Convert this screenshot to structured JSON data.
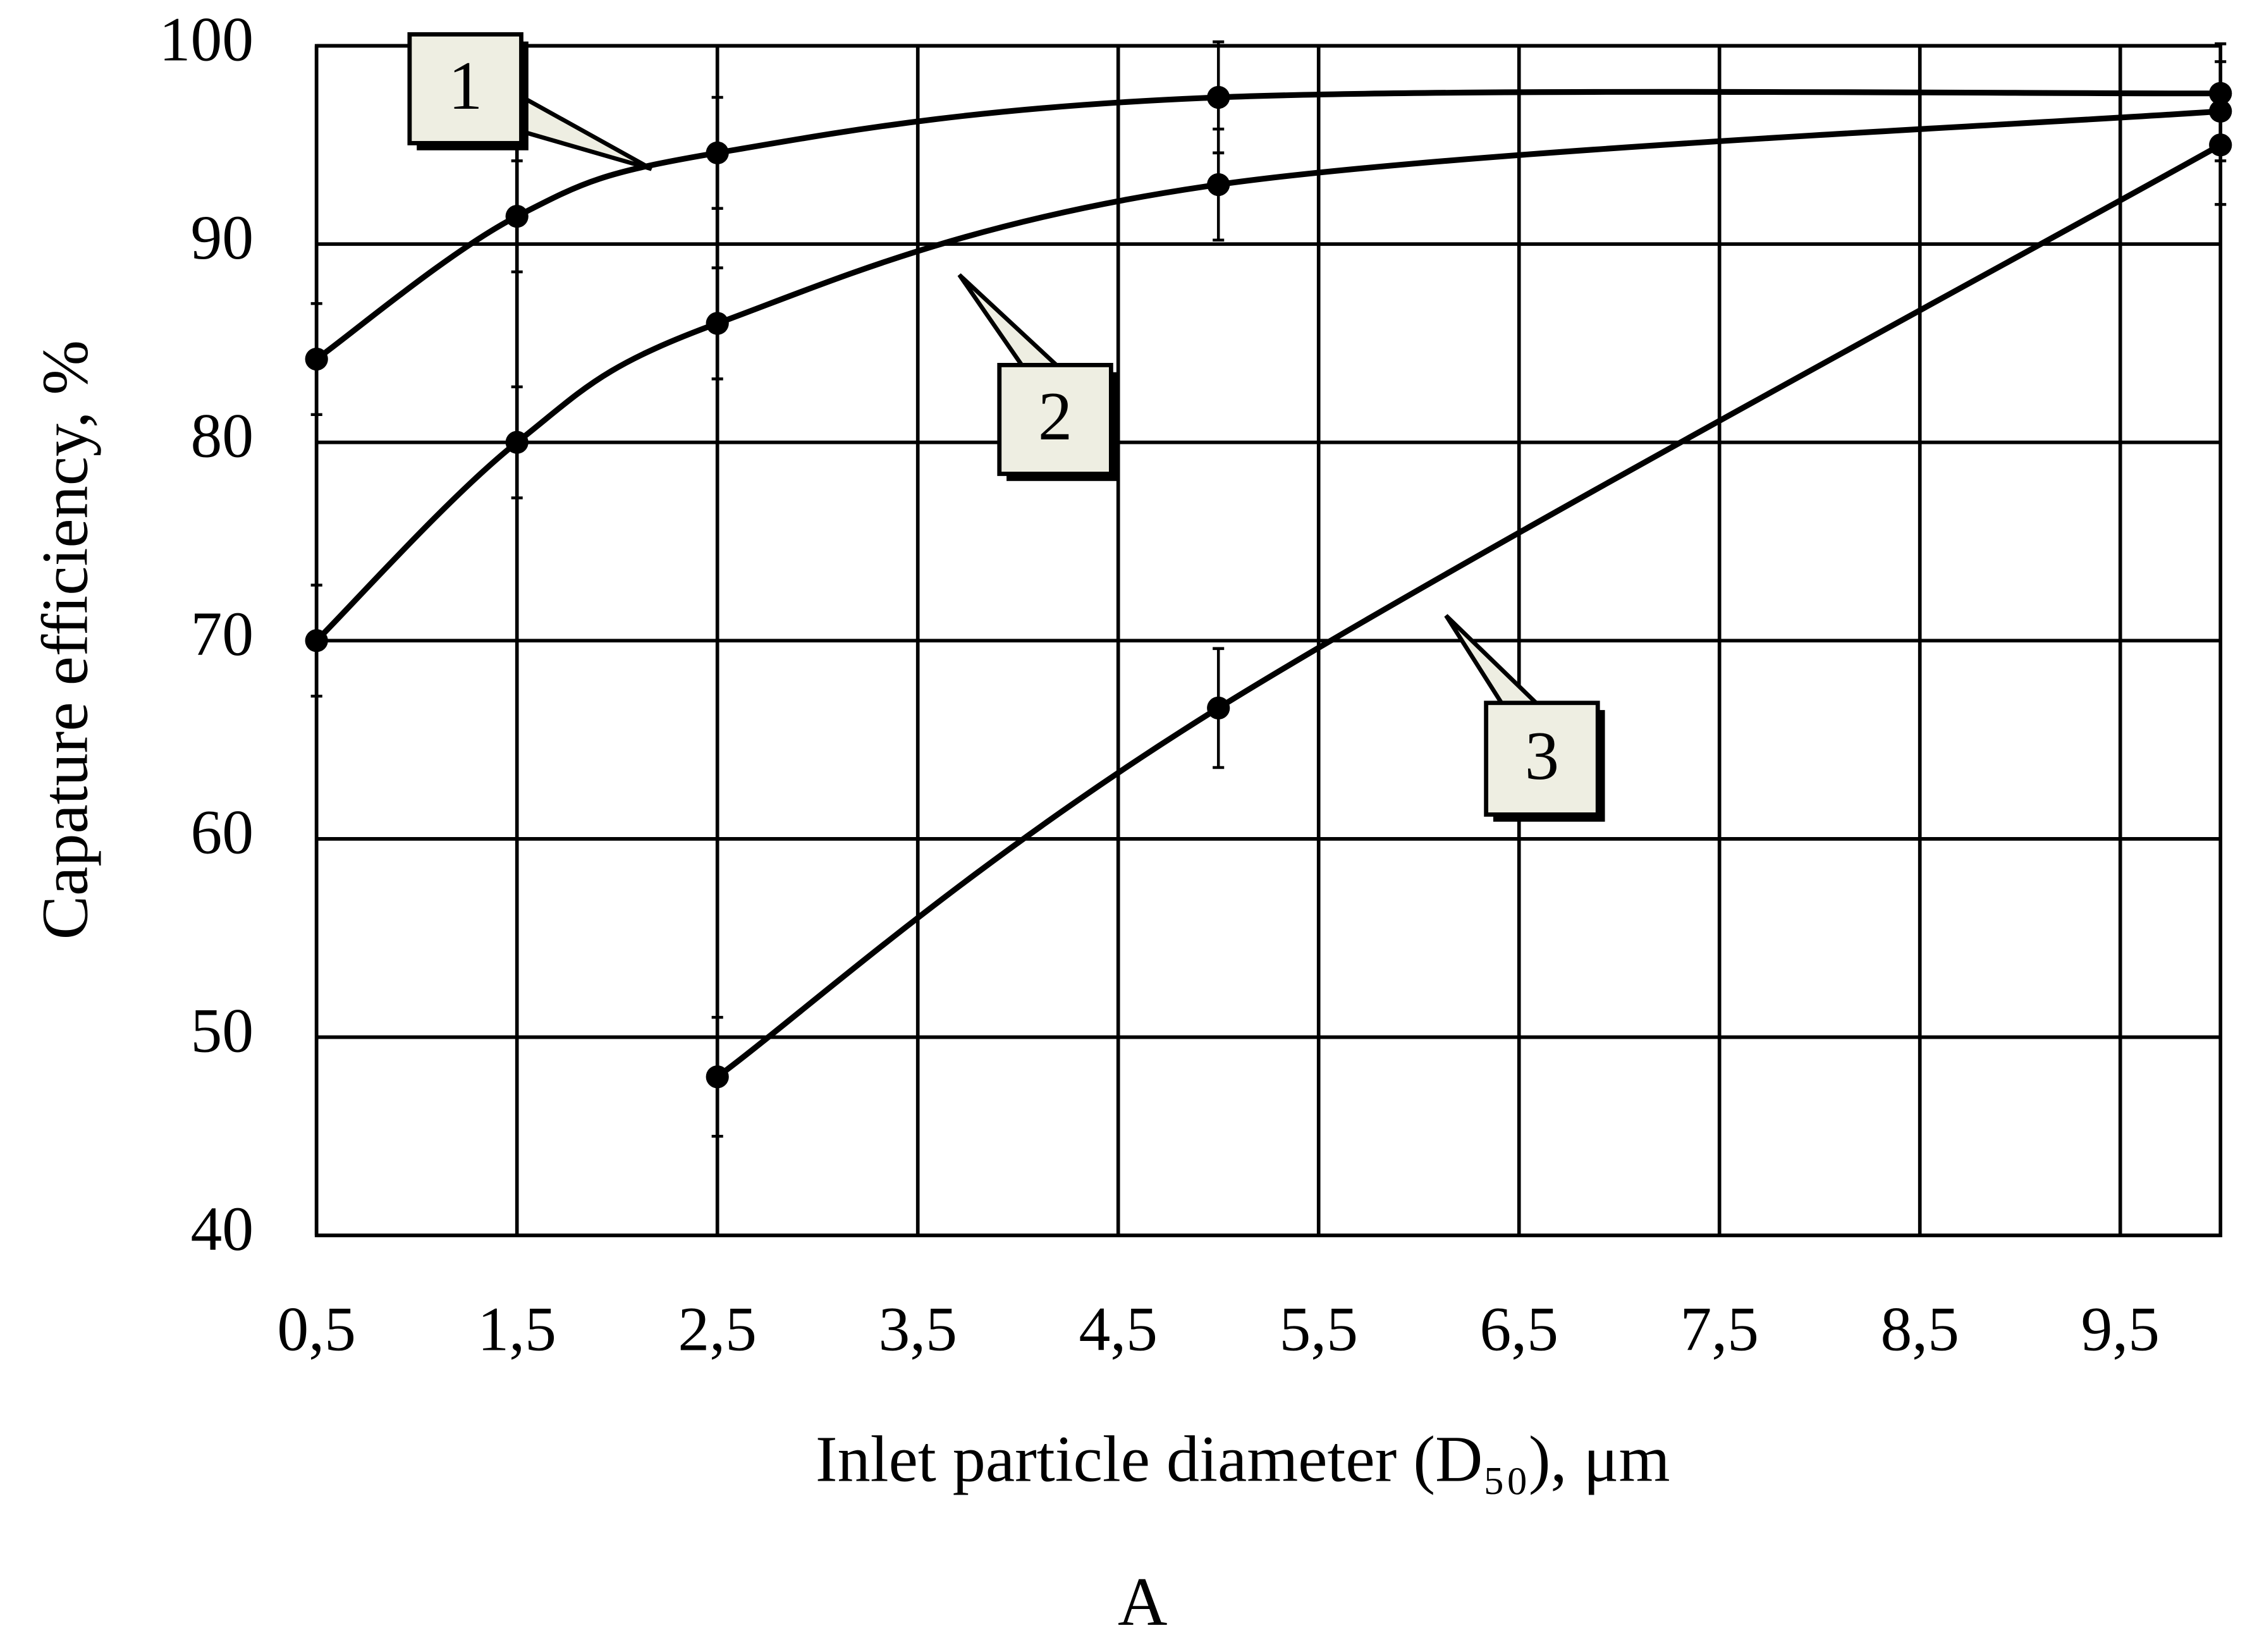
{
  "chart_data": {
    "type": "line",
    "y_label": "Capature efficiency,  %",
    "x_label": "Inlet particle diameter (D₅₀), μm",
    "caption": "A",
    "xlim": [
      0.5,
      10
    ],
    "xticks": [
      {
        "value": 0.5,
        "label": "0,5"
      },
      {
        "value": 1.5,
        "label": "1,5"
      },
      {
        "value": 2.5,
        "label": "2,5"
      },
      {
        "value": 3.5,
        "label": "3,5"
      },
      {
        "value": 4.5,
        "label": "4,5"
      },
      {
        "value": 5.5,
        "label": "5,5"
      },
      {
        "value": 6.5,
        "label": "6,5"
      },
      {
        "value": 7.5,
        "label": "7,5"
      },
      {
        "value": 8.5,
        "label": "8,5"
      },
      {
        "value": 9.5,
        "label": "9,5"
      }
    ],
    "ylim": [
      40,
      100
    ],
    "yticks": [
      40,
      50,
      60,
      70,
      80,
      90,
      100
    ],
    "grid": true,
    "series": [
      {
        "color": "#000000",
        "x": [
          0.5,
          1.5,
          2.5,
          5,
          10
        ],
        "values": [
          84.2,
          91.4,
          94.6,
          97.4,
          97.6
        ],
        "errors": [
          2.8,
          2.8,
          2.8,
          2.8,
          2.5
        ]
      },
      {
        "color": "#000000",
        "x": [
          0.5,
          1.5,
          2.5,
          5,
          10
        ],
        "values": [
          70,
          80,
          86,
          93,
          96.7
        ],
        "errors": [
          2.8,
          2.8,
          2.8,
          2.8,
          2.5
        ]
      },
      {
        "color": "#000000",
        "x": [
          2.5,
          5,
          10
        ],
        "values": [
          48,
          66.6,
          95
        ],
        "errors": [
          3,
          3,
          3
        ]
      }
    ],
    "annotations": [
      {
        "text": "1"
      },
      {
        "text": "2"
      },
      {
        "text": "3"
      }
    ]
  }
}
